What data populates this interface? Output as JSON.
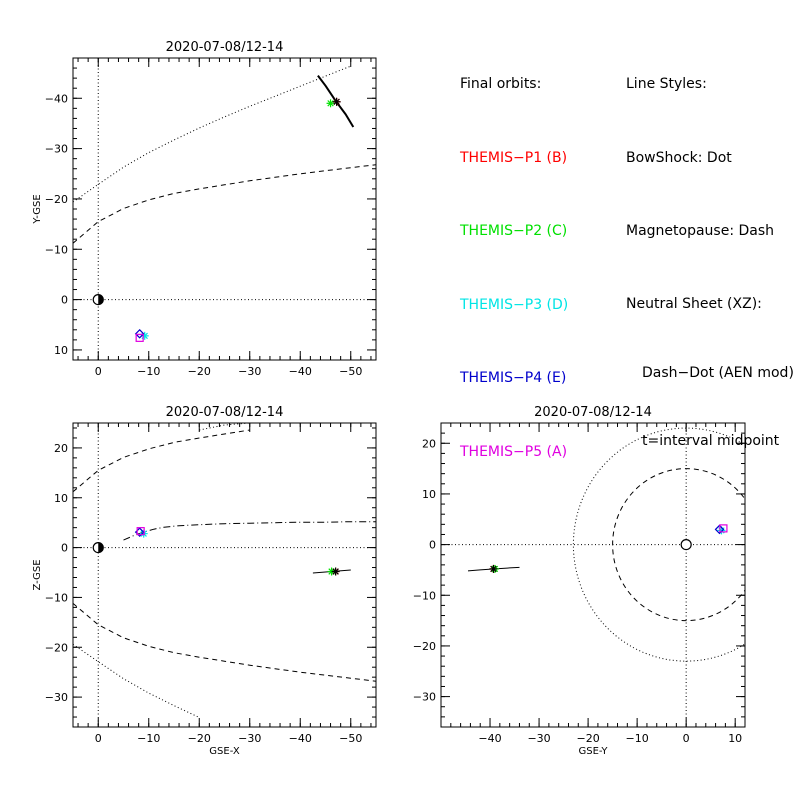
{
  "legend": {
    "orbits_title": "Final orbits:",
    "probes": [
      {
        "label": "THEMIS−P1 (B)",
        "color": "#ff0000"
      },
      {
        "label": "THEMIS−P2 (C)",
        "color": "#00e000"
      },
      {
        "label": "THEMIS−P3 (D)",
        "color": "#00e5e5"
      },
      {
        "label": "THEMIS−P4 (E)",
        "color": "#0000cc"
      },
      {
        "label": "THEMIS−P5 (A)",
        "color": "#e000e0"
      }
    ],
    "styles_title": "Line Styles:",
    "bowshock": "BowShock: Dot",
    "magnetopause": "Magnetopause: Dash",
    "neutral_sheet": "Neutral Sheet (XZ):",
    "neutral_detail": "Dash−Dot (AEN mod)",
    "interval_note": "t=interval midpoint"
  },
  "chart_data": [
    {
      "type": "line",
      "title": "2020-07-08/12-14",
      "xlabel": "",
      "ylabel": "Y-GSE",
      "xlim": [
        5,
        -55
      ],
      "ylim": [
        12,
        -48
      ],
      "xticks": [
        0,
        -10,
        -20,
        -30,
        -40,
        -50
      ],
      "xtick_labels": [
        "0",
        "−10",
        "−20",
        "−30",
        "−40",
        "−50"
      ],
      "yticks": [
        10,
        0,
        -10,
        -20,
        -30,
        -40
      ],
      "ytick_labels": [
        "10",
        "0",
        "−10",
        "−20",
        "−30",
        "−40"
      ],
      "curves": [
        {
          "name": "bowshock",
          "style": "dot",
          "x": [
            5,
            0,
            -5,
            -10,
            -15,
            -20,
            -25,
            -30,
            -35,
            -40,
            -45,
            -50
          ],
          "y": [
            -19.4,
            -22.9,
            -26.3,
            -29.2,
            -31.7,
            -34.1,
            -36.3,
            -38.4,
            -40.4,
            -42.4,
            -44.4,
            -46.4
          ]
        },
        {
          "name": "magnetopause",
          "style": "dash",
          "x": [
            5,
            0,
            -5,
            -10,
            -15,
            -20,
            -25,
            -30,
            -35,
            -40,
            -45,
            -50,
            -55
          ],
          "y": [
            -11.2,
            -15.5,
            -18.1,
            -19.8,
            -21.1,
            -22.0,
            -22.8,
            -23.6,
            -24.3,
            -25.0,
            -25.6,
            -26.2,
            -26.8
          ]
        },
        {
          "name": "orbit-track",
          "style": "solid-thick",
          "x": [
            -43.5,
            -45,
            -47,
            -49,
            -50.5
          ],
          "y": [
            -44.5,
            -42.5,
            -39.5,
            -36.8,
            -34.3
          ]
        }
      ],
      "probes": [
        {
          "name": "P1",
          "symbol": "asterisk",
          "color": "#ff0000",
          "x": -47.2,
          "y": -39.3
        },
        {
          "name": "P2",
          "symbol": "asterisk",
          "color": "#00e000",
          "x": -46.0,
          "y": -39.0
        },
        {
          "name": "P3",
          "symbol": "asterisk",
          "color": "#00e5e5",
          "x": -9.2,
          "y": 7.2
        },
        {
          "name": "P4",
          "symbol": "diamond",
          "color": "#0000cc",
          "x": -8.2,
          "y": 6.8
        },
        {
          "name": "P5",
          "symbol": "square",
          "color": "#e000e0",
          "x": -8.2,
          "y": 7.6
        }
      ],
      "track_marker": {
        "symbol": "asterisk",
        "color": "#000000",
        "x": -47.2,
        "y": -39.3
      },
      "earth": {
        "x": 0,
        "y": 0
      }
    },
    {
      "type": "line",
      "title": "2020-07-08/12-14",
      "xlabel": "GSE-X",
      "ylabel": "Z-GSE",
      "xlim": [
        5,
        -55
      ],
      "ylim": [
        -36,
        25
      ],
      "xticks": [
        0,
        -10,
        -20,
        -30,
        -40,
        -50
      ],
      "xtick_labels": [
        "0",
        "−10",
        "−20",
        "−30",
        "−40",
        "−50"
      ],
      "yticks": [
        20,
        10,
        0,
        -10,
        -20,
        -30
      ],
      "ytick_labels": [
        "20",
        "10",
        "0",
        "−10",
        "−20",
        "−30"
      ],
      "curves": [
        {
          "name": "bowshock-upper",
          "style": "dot",
          "x": [
            -20,
            -25,
            -30
          ],
          "y": [
            23.6,
            24.6,
            25
          ]
        },
        {
          "name": "magnetopause-upper",
          "style": "dash",
          "x": [
            5,
            0,
            -5,
            -10,
            -15,
            -20,
            -25,
            -30
          ],
          "y": [
            11.2,
            15.5,
            18.1,
            19.8,
            21.1,
            22.0,
            22.8,
            23.6
          ]
        },
        {
          "name": "magnetopause-lower",
          "style": "dash",
          "x": [
            5,
            0,
            -5,
            -10,
            -15,
            -20,
            -25,
            -30,
            -35,
            -40,
            -45,
            -50,
            -55
          ],
          "y": [
            -11.2,
            -15.5,
            -18.1,
            -19.8,
            -21.1,
            -22.0,
            -22.8,
            -23.6,
            -24.3,
            -25.0,
            -25.6,
            -26.2,
            -26.8
          ]
        },
        {
          "name": "bowshock-lower",
          "style": "dot",
          "x": [
            5,
            0,
            -5,
            -10,
            -15,
            -20
          ],
          "y": [
            -19.4,
            -22.9,
            -26.3,
            -29.2,
            -31.7,
            -34.1
          ]
        },
        {
          "name": "neutral-sheet",
          "style": "dashdot",
          "x": [
            -5,
            -7,
            -9,
            -11,
            -13,
            -16,
            -20,
            -25,
            -30,
            -35,
            -40,
            -45,
            -50,
            -55
          ],
          "y": [
            1.5,
            2.4,
            3.1,
            3.7,
            4.1,
            4.4,
            4.6,
            4.8,
            4.9,
            5.0,
            5.1,
            5.1,
            5.2,
            5.2
          ]
        },
        {
          "name": "orbit-track",
          "style": "solid",
          "x": [
            -42.5,
            -45,
            -47.5,
            -50
          ],
          "y": [
            -5.1,
            -4.9,
            -4.7,
            -4.5
          ]
        }
      ],
      "probes": [
        {
          "name": "P1",
          "symbol": "asterisk",
          "color": "#ff0000",
          "x": -47.0,
          "y": -4.8
        },
        {
          "name": "P2",
          "symbol": "asterisk",
          "color": "#00e000",
          "x": -46.2,
          "y": -4.8
        },
        {
          "name": "P3",
          "symbol": "asterisk",
          "color": "#00e5e5",
          "x": -9.0,
          "y": 2.8
        },
        {
          "name": "P4",
          "symbol": "diamond",
          "color": "#0000cc",
          "x": -8.2,
          "y": 3.1
        },
        {
          "name": "P5",
          "symbol": "square",
          "color": "#e000e0",
          "x": -8.4,
          "y": 3.3
        }
      ],
      "track_marker": {
        "symbol": "asterisk",
        "color": "#000000",
        "x": -47.0,
        "y": -4.8
      },
      "earth": {
        "x": 0,
        "y": 0
      }
    },
    {
      "type": "line",
      "title": "2020-07-08/12-14",
      "xlabel": "GSE-Y",
      "ylabel": "",
      "xlim": [
        -50,
        12
      ],
      "ylim": [
        -36,
        24
      ],
      "xticks": [
        -40,
        -30,
        -20,
        -10,
        0,
        10
      ],
      "xtick_labels": [
        "−40",
        "−30",
        "−20",
        "−10",
        "0",
        "10"
      ],
      "yticks": [
        20,
        10,
        0,
        -10,
        -20,
        -30
      ],
      "ytick_labels": [
        "20",
        "10",
        "0",
        "−10",
        "−20",
        "−30"
      ],
      "circles": [
        {
          "name": "bowshock-circle",
          "style": "dot",
          "cx": 0,
          "cy": 0,
          "r": 23
        },
        {
          "name": "magnetopause-circle",
          "style": "dash",
          "cx": 0,
          "cy": 0,
          "r": 15
        }
      ],
      "curves": [
        {
          "name": "orbit-track",
          "style": "solid",
          "x": [
            -44.5,
            -42,
            -39,
            -36,
            -34
          ],
          "y": [
            -5.2,
            -5.0,
            -4.8,
            -4.6,
            -4.5
          ]
        }
      ],
      "probes": [
        {
          "name": "P1",
          "symbol": "asterisk",
          "color": "#ff0000",
          "x": -39.3,
          "y": -4.8
        },
        {
          "name": "P2",
          "symbol": "asterisk",
          "color": "#00e000",
          "x": -39.0,
          "y": -4.8
        },
        {
          "name": "P3",
          "symbol": "asterisk",
          "color": "#00e5e5",
          "x": 7.2,
          "y": 2.8
        },
        {
          "name": "P4",
          "symbol": "diamond",
          "color": "#0000cc",
          "x": 6.8,
          "y": 3.0
        },
        {
          "name": "P5",
          "symbol": "square",
          "color": "#e000e0",
          "x": 7.6,
          "y": 3.2
        }
      ],
      "track_marker": {
        "symbol": "asterisk",
        "color": "#000000",
        "x": -39.3,
        "y": -4.8
      },
      "earth": {
        "x": 0,
        "y": 0
      }
    }
  ]
}
